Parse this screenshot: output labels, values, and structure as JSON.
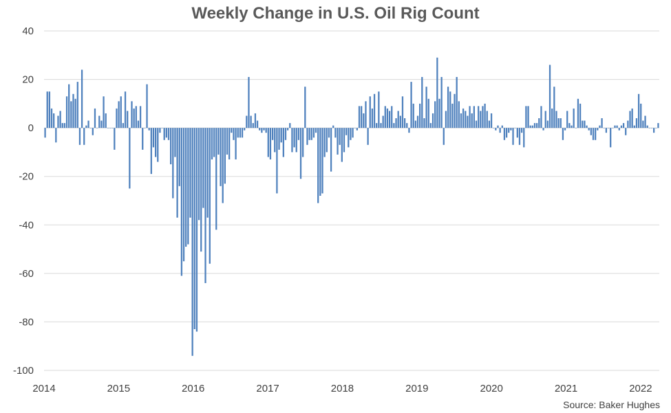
{
  "chart_data": {
    "type": "bar",
    "title": "Weekly Change in U.S. Oil Rig Count",
    "source": "Source: Baker Hughes",
    "xlabel": "",
    "ylabel": "",
    "ylim": [
      -100,
      40
    ],
    "yticks": [
      "40",
      "20",
      "0",
      "-20",
      "-40",
      "-60",
      "-80",
      "-100"
    ],
    "ytick_values": [
      40,
      20,
      0,
      -20,
      -40,
      -60,
      -80,
      -100
    ],
    "xticks": [
      "2014",
      "2015",
      "2016",
      "2017",
      "2018",
      "2019",
      "2020",
      "2021",
      "2022"
    ],
    "xlim_years": [
      2014,
      2022.25
    ],
    "grid": true,
    "bar_color": "#4F81BD",
    "series": [
      {
        "values": [
          -4,
          15,
          15,
          8,
          6,
          -6,
          5,
          7,
          2,
          2,
          13,
          18,
          11,
          14,
          12,
          19,
          -7,
          24,
          -7,
          1,
          3,
          0,
          -3,
          8,
          0,
          5,
          3,
          13,
          6,
          0,
          0,
          0,
          -9,
          8,
          11,
          13,
          2,
          15,
          7,
          -25,
          11,
          8,
          9,
          3,
          9,
          -9,
          0,
          18,
          -1,
          -19,
          -8,
          -12,
          -14,
          -2,
          0,
          -5,
          -4,
          -5,
          -15,
          -29,
          -12,
          -37,
          -24,
          -61,
          -55,
          -49,
          -48,
          -37,
          -94,
          -83,
          -84,
          -38,
          -51,
          -33,
          -64,
          -37,
          -56,
          -13,
          -12,
          -42,
          -11,
          -24,
          -31,
          -23,
          -11,
          -13,
          -2,
          -5,
          -13,
          -4,
          -4,
          -4,
          -1,
          5,
          21,
          5,
          2,
          6,
          3,
          -1,
          -2,
          -1,
          -2,
          -12,
          -13,
          -5,
          -10,
          -27,
          -9,
          -6,
          -12,
          -5,
          -1,
          2,
          -10,
          -8,
          -10,
          -5,
          -21,
          -12,
          17,
          -7,
          -5,
          -5,
          -4,
          -2,
          -31,
          -28,
          -27,
          -12,
          -10,
          -4,
          -18,
          1,
          -4,
          -11,
          -7,
          -14,
          -10,
          -3,
          -8,
          -5,
          -4,
          0,
          -1,
          9,
          9,
          6,
          11,
          -7,
          13,
          8,
          14,
          2,
          15,
          2,
          5,
          9,
          8,
          7,
          9,
          2,
          4,
          7,
          5,
          13,
          4,
          2,
          -2,
          19,
          10,
          3,
          5,
          10,
          21,
          4,
          17,
          12,
          2,
          6,
          11,
          29,
          12,
          21,
          -7,
          7,
          17,
          15,
          10,
          14,
          21,
          11,
          6,
          8,
          7,
          5,
          9,
          6,
          9,
          3,
          9,
          7,
          9,
          10,
          7,
          3,
          6,
          0,
          -1,
          1,
          -2,
          1,
          -5,
          -4,
          -2,
          -1,
          -7,
          0,
          -4,
          -7,
          -2,
          -8,
          9,
          9,
          1,
          1,
          2,
          2,
          4,
          9,
          -1,
          7,
          3,
          26,
          8,
          17,
          7,
          4,
          4,
          -5,
          -1,
          7,
          2,
          1,
          8,
          0,
          12,
          10,
          3,
          3,
          1,
          -1,
          -3,
          -5,
          -5,
          -1,
          1,
          4,
          0,
          -2,
          0,
          -8,
          0,
          1,
          1,
          -1,
          1,
          2,
          -3,
          3,
          7,
          8,
          1,
          4,
          14,
          10,
          3,
          5,
          1,
          0,
          0,
          -2,
          0,
          2
        ]
      }
    ]
  }
}
